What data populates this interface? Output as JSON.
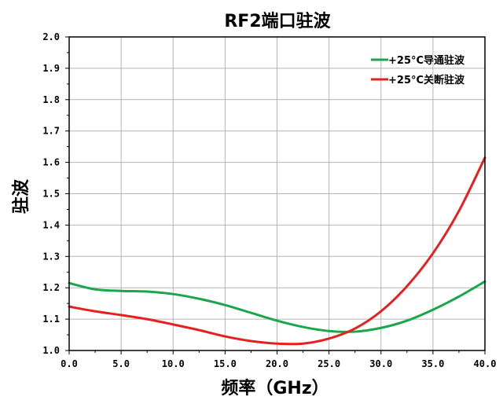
{
  "chart_data": {
    "type": "line",
    "title": "RF2端口驻波",
    "xlabel": "频率（GHz）",
    "ylabel": "驻波",
    "xlim": [
      0,
      40
    ],
    "ylim": [
      1.0,
      2.0
    ],
    "xticks": [
      0,
      5,
      10,
      15,
      20,
      25,
      30,
      35,
      40
    ],
    "xtick_labels": [
      "0.0",
      "5.0",
      "10.0",
      "15.0",
      "20.0",
      "25.0",
      "30.0",
      "35.0",
      "40.0"
    ],
    "yticks": [
      1.0,
      1.1,
      1.2,
      1.3,
      1.4,
      1.5,
      1.6,
      1.7,
      1.8,
      1.9,
      2.0
    ],
    "ytick_labels": [
      "1.0",
      "1.1",
      "1.2",
      "1.3",
      "1.4",
      "1.5",
      "1.6",
      "1.7",
      "1.8",
      "1.9",
      "2.0"
    ],
    "grid": true,
    "legend_position": "top-right",
    "series": [
      {
        "name": "+25°C导通驻波",
        "color": "#1aa64a",
        "x": [
          0,
          2.5,
          5,
          7.5,
          10,
          12.5,
          15,
          17.5,
          20,
          22.5,
          25,
          27.5,
          30,
          32.5,
          35,
          37.5,
          40
        ],
        "y": [
          1.215,
          1.195,
          1.19,
          1.188,
          1.18,
          1.165,
          1.145,
          1.12,
          1.095,
          1.075,
          1.062,
          1.06,
          1.072,
          1.095,
          1.13,
          1.172,
          1.22
        ]
      },
      {
        "name": "+25°C关断驻波",
        "color": "#e62020",
        "x": [
          0,
          2.5,
          5,
          7.5,
          10,
          12.5,
          15,
          17.5,
          20,
          22.5,
          25,
          27.5,
          30,
          32.5,
          35,
          37.5,
          40
        ],
        "y": [
          1.14,
          1.125,
          1.113,
          1.1,
          1.083,
          1.065,
          1.045,
          1.03,
          1.022,
          1.022,
          1.038,
          1.07,
          1.125,
          1.205,
          1.31,
          1.445,
          1.615
        ]
      }
    ]
  }
}
